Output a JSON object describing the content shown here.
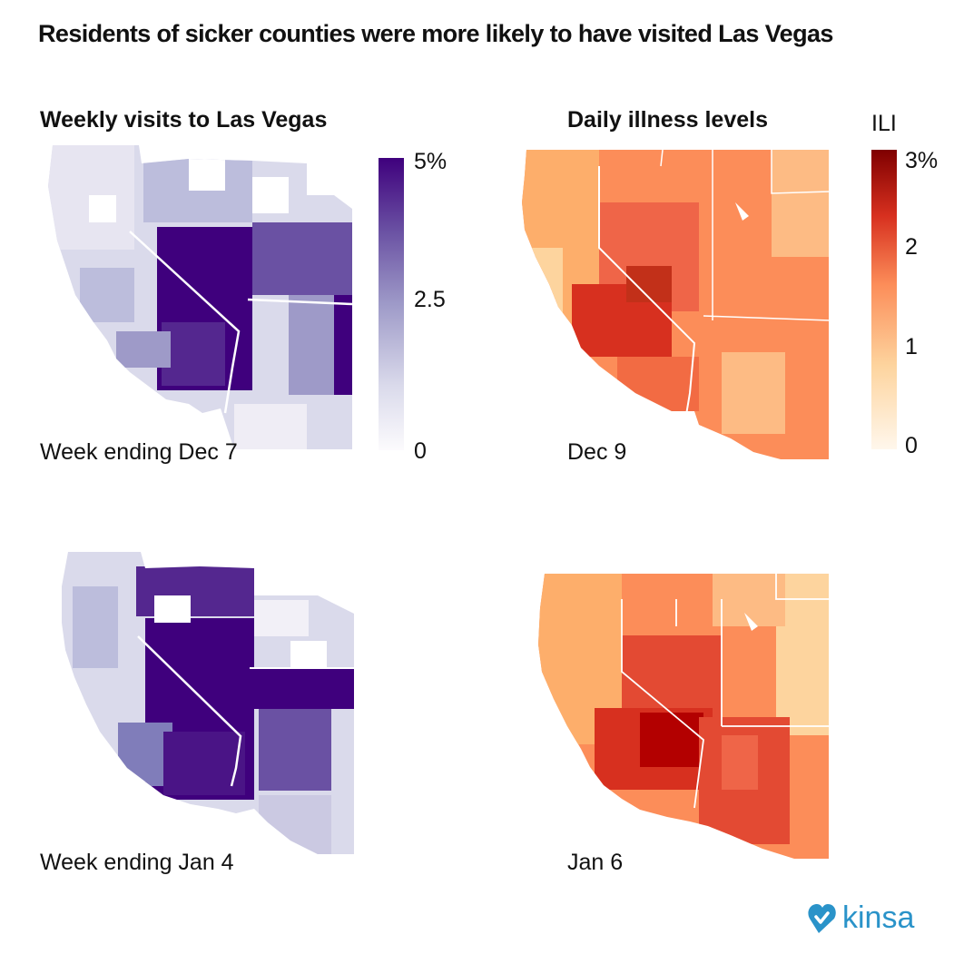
{
  "title": "Residents of sicker counties were more likely to have visited Las Vegas",
  "panels": {
    "visits_title": "Weekly visits to Las Vegas",
    "illness_title": "Daily illness levels",
    "maps": [
      {
        "caption": "Week ending Dec 7",
        "kind": "visits"
      },
      {
        "caption": "Dec 9",
        "kind": "illness"
      },
      {
        "caption": "Week ending Jan 4",
        "kind": "visits"
      },
      {
        "caption": "Jan 6",
        "kind": "illness"
      }
    ]
  },
  "visits_legend": {
    "ticks": [
      "5%",
      "2.5",
      "0"
    ],
    "colors": [
      "#3f007d",
      "#6a51a3",
      "#9e9ac8",
      "#dadaeb",
      "#fcfbfd"
    ]
  },
  "ili_legend": {
    "title": "ILI",
    "ticks": [
      "3%",
      "2",
      "1",
      "0"
    ],
    "colors": [
      "#7f0000",
      "#d7301f",
      "#fc8d59",
      "#fdd49e",
      "#fff7ec"
    ]
  },
  "logo": {
    "text": "kinsa",
    "color": "#2a93c9"
  }
}
